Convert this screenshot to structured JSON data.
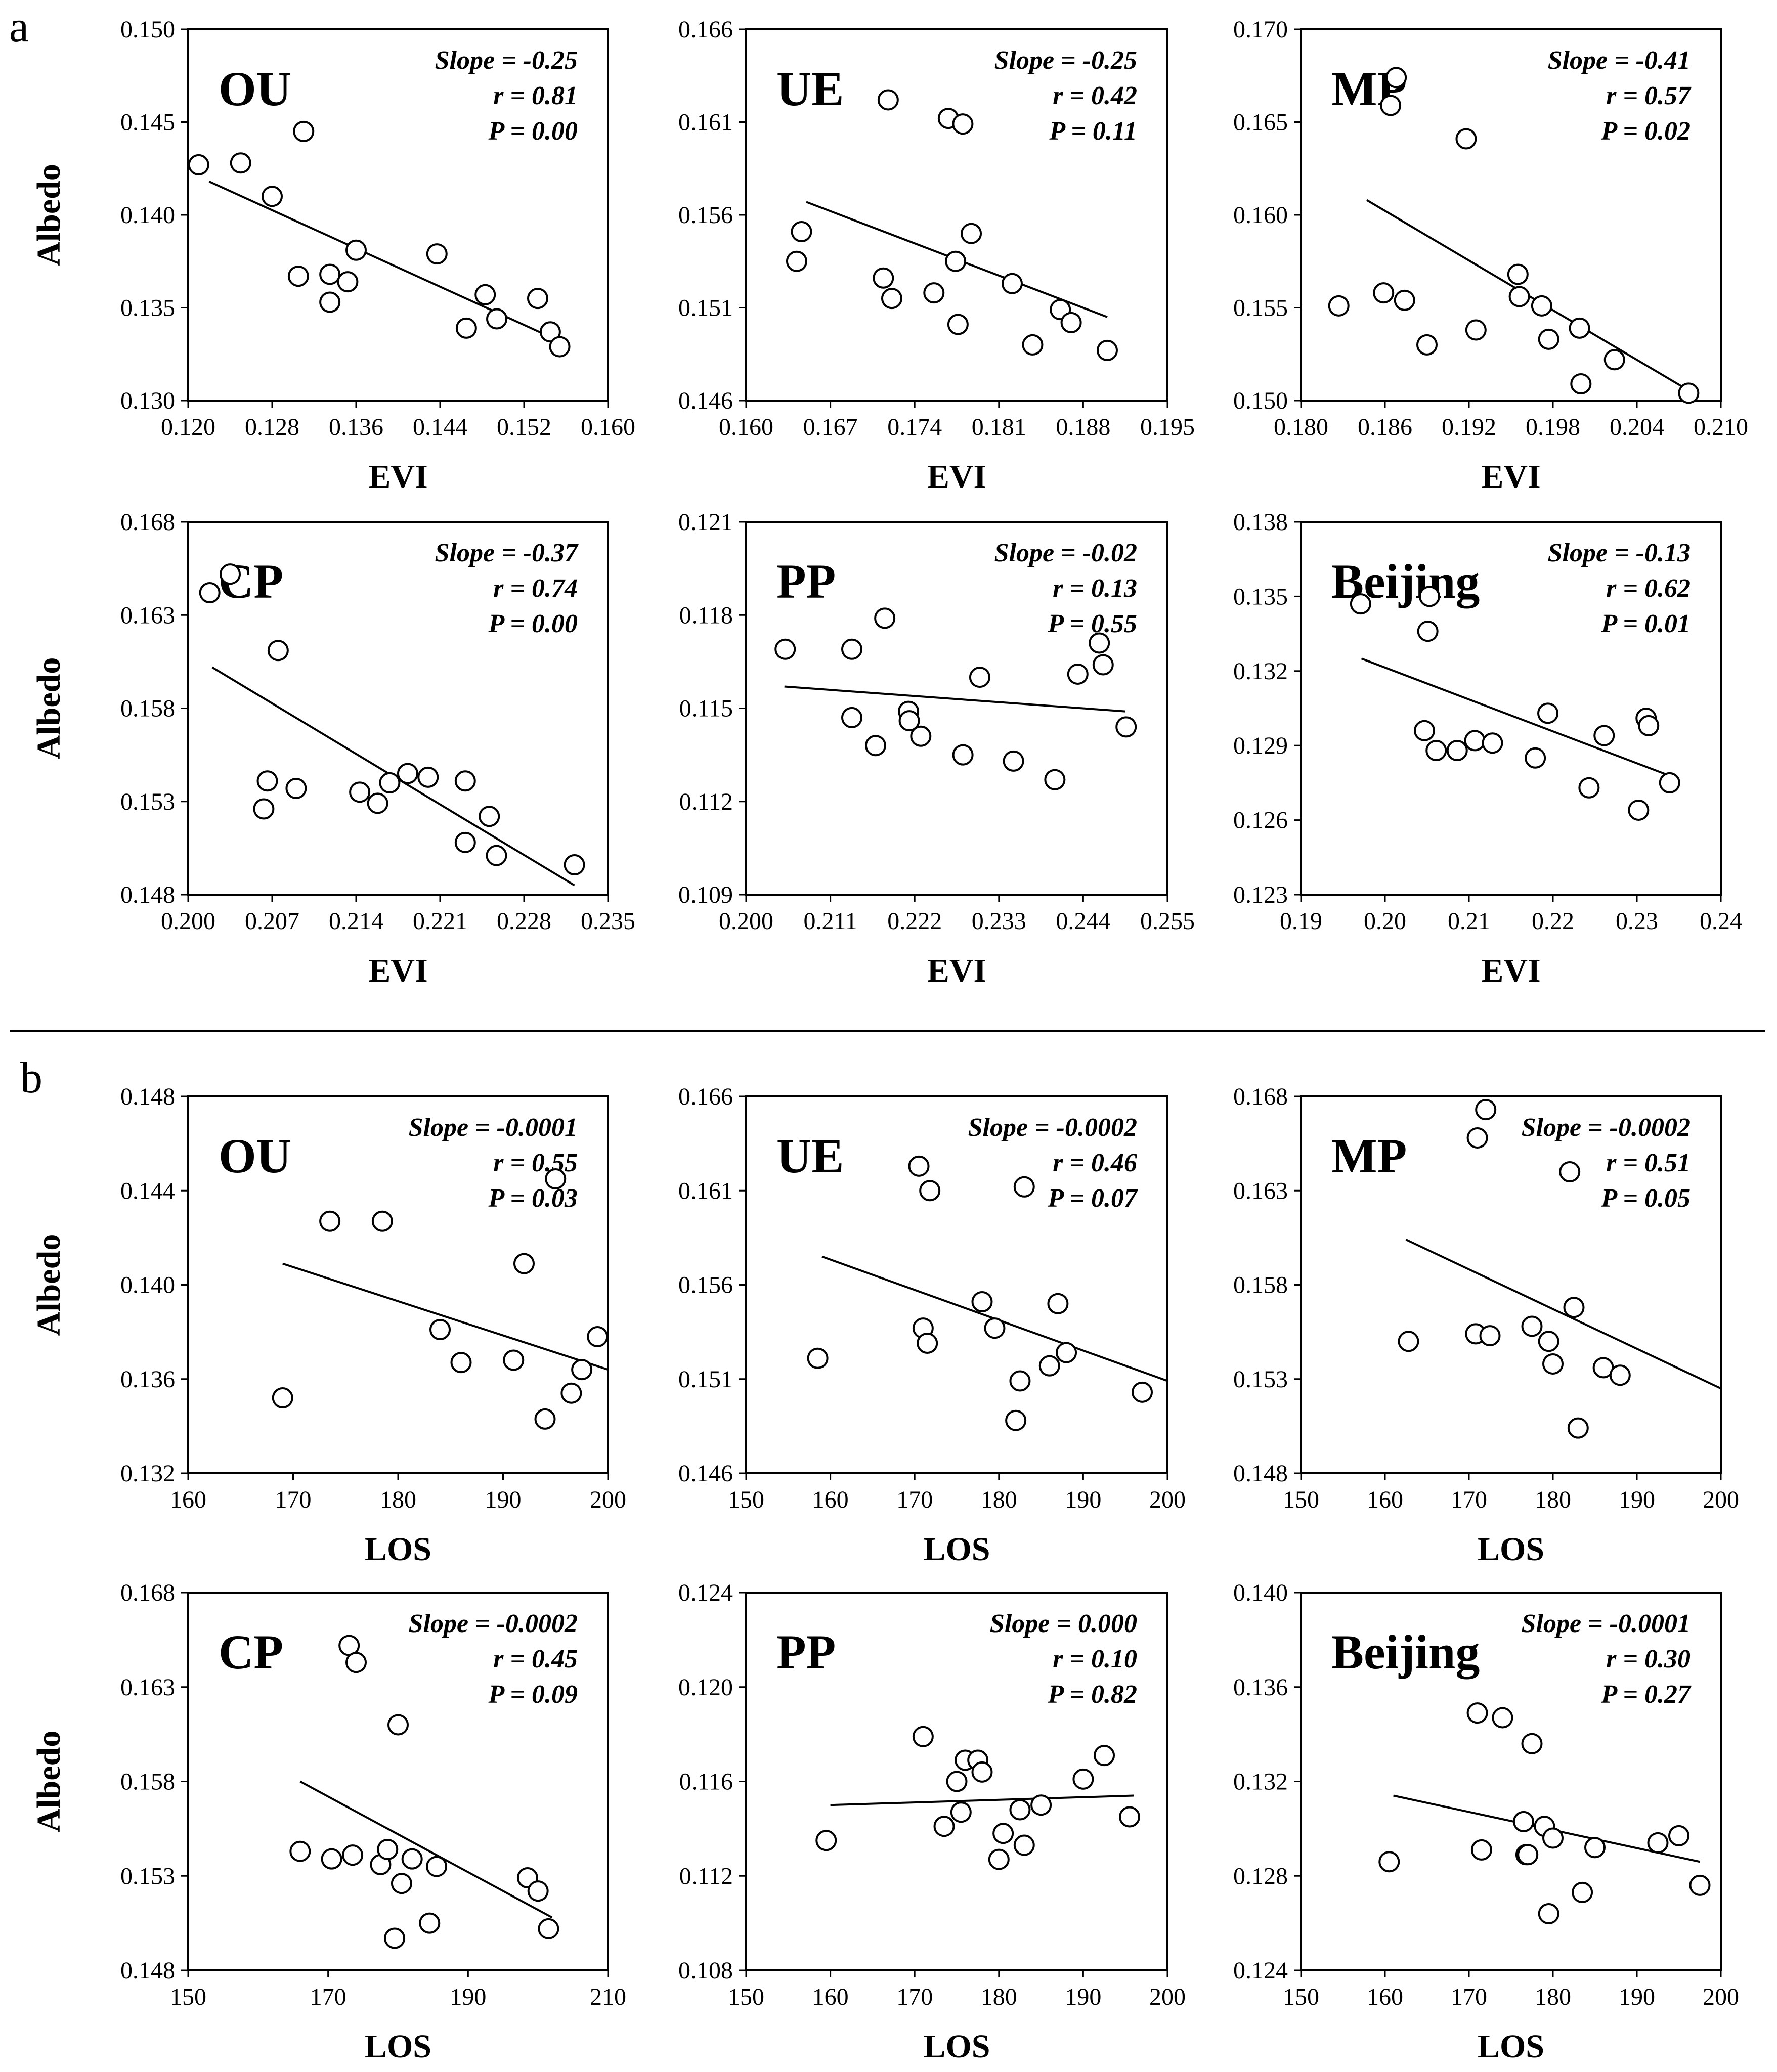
{
  "panel_labels": [
    "a",
    "b"
  ],
  "chart_data": [
    {
      "type": "scatter",
      "panel": "a",
      "site": "OU",
      "xlabel": "EVI",
      "ylabel": "Albedo",
      "xlim": [
        0.12,
        0.16
      ],
      "ylim": [
        0.13,
        0.15
      ],
      "xticks": [
        "0.120",
        "0.128",
        "0.136",
        "0.144",
        "0.152",
        "0.160"
      ],
      "yticks": [
        "0.150",
        "0.145",
        "0.140",
        "0.135",
        "0.130"
      ],
      "stats": [
        "Slope = -0.25",
        "r = 0.81",
        "P = 0.00"
      ],
      "trend": [
        [
          0.122,
          0.1418
        ],
        [
          0.155,
          0.1333
        ]
      ],
      "points": [
        [
          0.121,
          0.1427
        ],
        [
          0.125,
          0.1428
        ],
        [
          0.128,
          0.141
        ],
        [
          0.131,
          0.1445
        ],
        [
          0.1305,
          0.1367
        ],
        [
          0.1335,
          0.1368
        ],
        [
          0.1335,
          0.1353
        ],
        [
          0.1352,
          0.1364
        ],
        [
          0.136,
          0.1381
        ],
        [
          0.1437,
          0.1379
        ],
        [
          0.1465,
          0.1339
        ],
        [
          0.1483,
          0.1357
        ],
        [
          0.1494,
          0.1344
        ],
        [
          0.1533,
          0.1355
        ],
        [
          0.1545,
          0.1337
        ],
        [
          0.1554,
          0.1329
        ]
      ]
    },
    {
      "type": "scatter",
      "panel": "a",
      "site": "UE",
      "xlabel": "EVI",
      "ylabel": "",
      "xlim": [
        0.16,
        0.195
      ],
      "ylim": [
        0.146,
        0.166
      ],
      "xticks": [
        "0.160",
        "0.167",
        "0.174",
        "0.181",
        "0.188",
        "0.195"
      ],
      "yticks": [
        "0.166",
        "0.161",
        "0.156",
        "0.151",
        "0.146"
      ],
      "stats": [
        "Slope = -0.25",
        "r = 0.42",
        "P = 0.11"
      ],
      "trend": [
        [
          0.165,
          0.1567
        ],
        [
          0.19,
          0.1505
        ]
      ],
      "points": [
        [
          0.1642,
          0.1535
        ],
        [
          0.1646,
          0.1551
        ],
        [
          0.1718,
          0.1622
        ],
        [
          0.1714,
          0.1526
        ],
        [
          0.1721,
          0.1515
        ],
        [
          0.1756,
          0.1518
        ],
        [
          0.1768,
          0.1612
        ],
        [
          0.178,
          0.1609
        ],
        [
          0.1774,
          0.1535
        ],
        [
          0.1776,
          0.1501
        ],
        [
          0.1787,
          0.155
        ],
        [
          0.1821,
          0.1523
        ],
        [
          0.1838,
          0.149
        ],
        [
          0.1861,
          0.1509
        ],
        [
          0.187,
          0.1502
        ],
        [
          0.19,
          0.1487
        ]
      ]
    },
    {
      "type": "scatter",
      "panel": "a",
      "site": "MP",
      "xlabel": "EVI",
      "ylabel": "",
      "xlim": [
        0.18,
        0.21
      ],
      "ylim": [
        0.15,
        0.17
      ],
      "xticks": [
        "0.180",
        "0.186",
        "0.192",
        "0.198",
        "0.204",
        "0.210"
      ],
      "yticks": [
        "0.170",
        "0.165",
        "0.160",
        "0.155",
        "0.150"
      ],
      "stats": [
        "Slope = -0.41",
        "r = 0.57",
        "P = 0.02"
      ],
      "trend": [
        [
          0.1847,
          0.1608
        ],
        [
          0.2078,
          0.1505
        ]
      ],
      "points": [
        [
          0.1827,
          0.1551
        ],
        [
          0.1859,
          0.1558
        ],
        [
          0.1864,
          0.1659
        ],
        [
          0.1868,
          0.1674
        ],
        [
          0.1874,
          0.1554
        ],
        [
          0.189,
          0.153
        ],
        [
          0.1918,
          0.1641
        ],
        [
          0.1925,
          0.1538
        ],
        [
          0.1955,
          0.1568
        ],
        [
          0.1956,
          0.1556
        ],
        [
          0.1972,
          0.1551
        ],
        [
          0.1977,
          0.1533
        ],
        [
          0.1999,
          0.1539
        ],
        [
          0.2,
          0.1509
        ],
        [
          0.2024,
          0.1522
        ],
        [
          0.2077,
          0.1504
        ]
      ]
    },
    {
      "type": "scatter",
      "panel": "a",
      "site": "CP",
      "xlabel": "EVI",
      "ylabel": "Albedo",
      "xlim": [
        0.2,
        0.235
      ],
      "ylim": [
        0.148,
        0.168
      ],
      "xticks": [
        "0.200",
        "0.207",
        "0.214",
        "0.221",
        "0.228",
        "0.235"
      ],
      "yticks": [
        "0.168",
        "0.163",
        "0.158",
        "0.153",
        "0.148"
      ],
      "stats": [
        "Slope = -0.37",
        "r = 0.74",
        "P = 0.00"
      ],
      "trend": [
        [
          0.202,
          0.1602
        ],
        [
          0.2322,
          0.1485
        ]
      ],
      "points": [
        [
          0.2018,
          0.1642
        ],
        [
          0.2035,
          0.1652
        ],
        [
          0.2063,
          0.1526
        ],
        [
          0.2066,
          0.1541
        ],
        [
          0.2075,
          0.1611
        ],
        [
          0.209,
          0.1537
        ],
        [
          0.2143,
          0.1535
        ],
        [
          0.2158,
          0.1529
        ],
        [
          0.2168,
          0.154
        ],
        [
          0.2183,
          0.1545
        ],
        [
          0.22,
          0.1543
        ],
        [
          0.2231,
          0.1541
        ],
        [
          0.2231,
          0.1508
        ],
        [
          0.2251,
          0.1522
        ],
        [
          0.2257,
          0.1501
        ],
        [
          0.2322,
          0.1496
        ]
      ]
    },
    {
      "type": "scatter",
      "panel": "a",
      "site": "PP",
      "xlabel": "EVI",
      "ylabel": "",
      "xlim": [
        0.2,
        0.255
      ],
      "ylim": [
        0.109,
        0.121
      ],
      "xticks": [
        "0.200",
        "0.211",
        "0.222",
        "0.233",
        "0.244",
        "0.255"
      ],
      "yticks": [
        "0.121",
        "0.118",
        "0.115",
        "0.112",
        "0.109"
      ],
      "stats": [
        "Slope = -0.02",
        "r = 0.13",
        "P = 0.55"
      ],
      "trend": [
        [
          0.205,
          0.1157
        ],
        [
          0.2495,
          0.1149
        ]
      ],
      "points": [
        [
          0.2051,
          0.1169
        ],
        [
          0.2138,
          0.1169
        ],
        [
          0.2138,
          0.1147
        ],
        [
          0.2169,
          0.1138
        ],
        [
          0.2181,
          0.1179
        ],
        [
          0.2212,
          0.1149
        ],
        [
          0.2213,
          0.1146
        ],
        [
          0.2228,
          0.1141
        ],
        [
          0.2283,
          0.1135
        ],
        [
          0.2305,
          0.116
        ],
        [
          0.2349,
          0.1133
        ],
        [
          0.2403,
          0.1127
        ],
        [
          0.2433,
          0.1161
        ],
        [
          0.2461,
          0.1171
        ],
        [
          0.2466,
          0.1164
        ],
        [
          0.2496,
          0.1144
        ]
      ]
    },
    {
      "type": "scatter",
      "panel": "a",
      "site": "Beijing",
      "xlabel": "EVI",
      "ylabel": "",
      "xlim": [
        0.19,
        0.24
      ],
      "ylim": [
        0.123,
        0.138
      ],
      "xticks": [
        "0.19",
        "0.20",
        "0.21",
        "0.22",
        "0.23",
        "0.24"
      ],
      "yticks": [
        "0.138",
        "0.135",
        "0.132",
        "0.129",
        "0.126",
        "0.123"
      ],
      "stats": [
        "Slope = -0.13",
        "r = 0.62",
        "P = 0.01"
      ],
      "trend": [
        [
          0.1972,
          0.1325
        ],
        [
          0.2338,
          0.1278
        ]
      ],
      "points": [
        [
          0.1971,
          0.1347
        ],
        [
          0.2047,
          0.1296
        ],
        [
          0.2051,
          0.1336
        ],
        [
          0.2053,
          0.135
        ],
        [
          0.2061,
          0.1288
        ],
        [
          0.2086,
          0.1288
        ],
        [
          0.2107,
          0.1292
        ],
        [
          0.2128,
          0.1291
        ],
        [
          0.2179,
          0.1285
        ],
        [
          0.2194,
          0.1303
        ],
        [
          0.2243,
          0.1273
        ],
        [
          0.2261,
          0.1294
        ],
        [
          0.2302,
          0.1264
        ],
        [
          0.2311,
          0.1301
        ],
        [
          0.2314,
          0.1298
        ],
        [
          0.2339,
          0.1275
        ]
      ]
    },
    {
      "type": "scatter",
      "panel": "b",
      "site": "OU",
      "xlabel": "LOS",
      "ylabel": "Albedo",
      "xlim": [
        160,
        200
      ],
      "ylim": [
        0.132,
        0.148
      ],
      "xticks": [
        "160",
        "170",
        "180",
        "190",
        "200"
      ],
      "yticks": [
        "0.148",
        "0.144",
        "0.140",
        "0.136",
        "0.132"
      ],
      "stats": [
        "Slope = -0.0001",
        "r = 0.55",
        "P = 0.03"
      ],
      "trend": [
        [
          169,
          0.1409
        ],
        [
          200,
          0.1364
        ]
      ],
      "points": [
        [
          169,
          0.1352
        ],
        [
          173.5,
          0.1427
        ],
        [
          178.5,
          0.1427
        ],
        [
          184,
          0.1381
        ],
        [
          186,
          0.1367
        ],
        [
          191,
          0.1368
        ],
        [
          192,
          0.1409
        ],
        [
          194,
          0.1343
        ],
        [
          195,
          0.1445
        ],
        [
          196.5,
          0.1354
        ],
        [
          197.5,
          0.1364
        ],
        [
          199,
          0.1378
        ]
      ]
    },
    {
      "type": "scatter",
      "panel": "b",
      "site": "UE",
      "xlabel": "LOS",
      "ylabel": "",
      "xlim": [
        150,
        200
      ],
      "ylim": [
        0.146,
        0.166
      ],
      "xticks": [
        "150",
        "160",
        "170",
        "180",
        "190",
        "200"
      ],
      "yticks": [
        "0.166",
        "0.161",
        "0.156",
        "0.151",
        "0.146"
      ],
      "stats": [
        "Slope = -0.0002",
        "r = 0.46",
        "P = 0.07"
      ],
      "trend": [
        [
          159,
          0.1575
        ],
        [
          200,
          0.1509
        ]
      ],
      "points": [
        [
          158.5,
          0.1521
        ],
        [
          170.5,
          0.1623
        ],
        [
          171,
          0.1537
        ],
        [
          171.5,
          0.1529
        ],
        [
          171.8,
          0.161
        ],
        [
          178,
          0.1551
        ],
        [
          179.5,
          0.1537
        ],
        [
          182,
          0.1488
        ],
        [
          182.5,
          0.1509
        ],
        [
          183,
          0.1612
        ],
        [
          186,
          0.1517
        ],
        [
          187,
          0.155
        ],
        [
          188,
          0.1524
        ],
        [
          197,
          0.1503
        ]
      ]
    },
    {
      "type": "scatter",
      "panel": "b",
      "site": "MP",
      "xlabel": "LOS",
      "ylabel": "",
      "xlim": [
        150,
        200
      ],
      "ylim": [
        0.148,
        0.168
      ],
      "xticks": [
        "150",
        "160",
        "170",
        "180",
        "190",
        "200"
      ],
      "yticks": [
        "0.168",
        "0.163",
        "0.158",
        "0.153",
        "0.148"
      ],
      "stats": [
        "Slope = -0.0002",
        "r = 0.51",
        "P = 0.05"
      ],
      "trend": [
        [
          162.5,
          0.1604
        ],
        [
          200,
          0.1525
        ]
      ],
      "points": [
        [
          162.8,
          0.155
        ],
        [
          170.8,
          0.1554
        ],
        [
          171,
          0.1658
        ],
        [
          172,
          0.1673
        ],
        [
          172.5,
          0.1553
        ],
        [
          177.5,
          0.1558
        ],
        [
          179.5,
          0.155
        ],
        [
          180,
          0.1538
        ],
        [
          182,
          0.164
        ],
        [
          182.5,
          0.1568
        ],
        [
          183,
          0.1504
        ],
        [
          186,
          0.1536
        ],
        [
          188,
          0.1532
        ]
      ]
    },
    {
      "type": "scatter",
      "panel": "b",
      "site": "CP",
      "xlabel": "LOS",
      "ylabel": "Albedo",
      "xlim": [
        150,
        210
      ],
      "ylim": [
        0.148,
        0.168
      ],
      "xticks": [
        "150",
        "170",
        "190",
        "210"
      ],
      "yticks": [
        "0.168",
        "0.163",
        "0.158",
        "0.153",
        "0.148"
      ],
      "stats": [
        "Slope = -0.0002",
        "r = 0.45",
        "P = 0.09"
      ],
      "trend": [
        [
          166,
          0.158
        ],
        [
          202,
          0.1508
        ]
      ],
      "points": [
        [
          166,
          0.1543
        ],
        [
          170.5,
          0.1539
        ],
        [
          173,
          0.1652
        ],
        [
          173.5,
          0.1541
        ],
        [
          174,
          0.1643
        ],
        [
          177.5,
          0.1536
        ],
        [
          178.5,
          0.1544
        ],
        [
          179.5,
          0.1497
        ],
        [
          180,
          0.161
        ],
        [
          180.5,
          0.1526
        ],
        [
          182,
          0.1539
        ],
        [
          184.5,
          0.1505
        ],
        [
          185.5,
          0.1535
        ],
        [
          198.5,
          0.1529
        ],
        [
          200,
          0.1522
        ],
        [
          201.5,
          0.1502
        ]
      ]
    },
    {
      "type": "scatter",
      "panel": "b",
      "site": "PP",
      "xlabel": "LOS",
      "ylabel": "",
      "xlim": [
        150,
        200
      ],
      "ylim": [
        0.108,
        0.124
      ],
      "xticks": [
        "150",
        "160",
        "170",
        "180",
        "190",
        "200"
      ],
      "yticks": [
        "0.124",
        "0.120",
        "0.116",
        "0.112",
        "0.108"
      ],
      "stats": [
        "Slope = 0.000",
        "r = 0.10",
        "P = 0.82"
      ],
      "trend": [
        [
          160,
          0.115
        ],
        [
          196,
          0.1154
        ]
      ],
      "points": [
        [
          159.5,
          0.1135
        ],
        [
          171,
          0.1179
        ],
        [
          173.5,
          0.1141
        ],
        [
          175,
          0.116
        ],
        [
          175.5,
          0.1147
        ],
        [
          176,
          0.1169
        ],
        [
          177.5,
          0.1169
        ],
        [
          178,
          0.1164
        ],
        [
          180,
          0.1127
        ],
        [
          180.5,
          0.1138
        ],
        [
          182.5,
          0.1148
        ],
        [
          183,
          0.1133
        ],
        [
          185,
          0.115
        ],
        [
          190,
          0.1161
        ],
        [
          192.5,
          0.1171
        ],
        [
          195.5,
          0.1145
        ]
      ]
    },
    {
      "type": "scatter",
      "panel": "b",
      "site": "Beijing",
      "xlabel": "LOS",
      "ylabel": "",
      "xlim": [
        150,
        200
      ],
      "ylim": [
        0.124,
        0.14
      ],
      "xticks": [
        "150",
        "160",
        "170",
        "180",
        "190",
        "200"
      ],
      "yticks": [
        "0.140",
        "0.136",
        "0.132",
        "0.128",
        "0.124"
      ],
      "stats": [
        "Slope = -0.0001",
        "r = 0.30",
        "P = 0.27"
      ],
      "trend": [
        [
          161,
          0.1314
        ],
        [
          197.5,
          0.1286
        ]
      ],
      "points": [
        [
          160.5,
          0.1286
        ],
        [
          171,
          0.1349
        ],
        [
          171.5,
          0.1291
        ],
        [
          174,
          0.1347
        ],
        [
          176.5,
          0.1303
        ],
        [
          176.8,
          0.1289
        ],
        [
          177,
          0.1289
        ],
        [
          177.5,
          0.1336
        ],
        [
          179,
          0.1301
        ],
        [
          179.5,
          0.1264
        ],
        [
          180,
          0.1296
        ],
        [
          183.5,
          0.1273
        ],
        [
          185,
          0.1292
        ],
        [
          192.5,
          0.1294
        ],
        [
          195,
          0.1297
        ],
        [
          197.5,
          0.1276
        ]
      ]
    }
  ]
}
